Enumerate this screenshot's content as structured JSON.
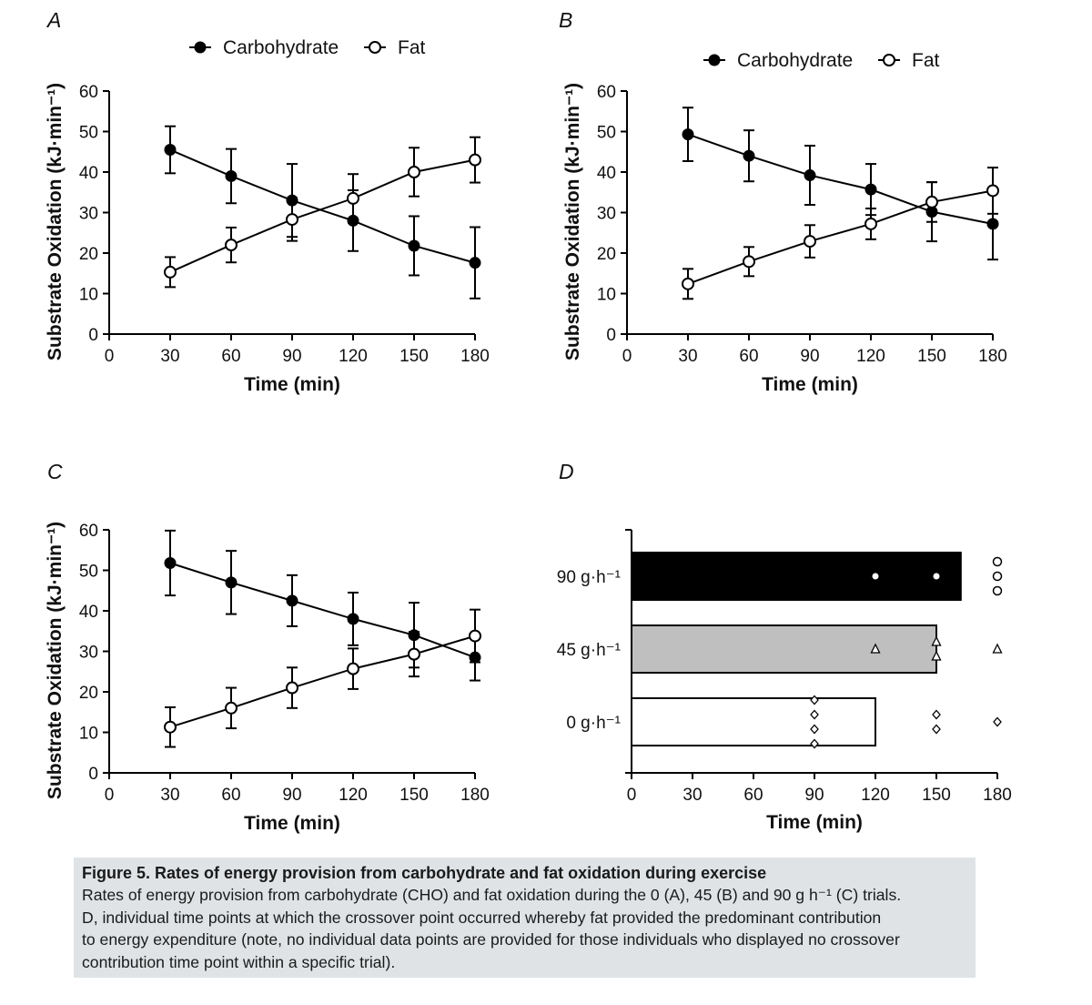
{
  "legend": {
    "carb": "Carbohydrate",
    "fat": "Fat"
  },
  "caption": {
    "title": "Figure 5.  Rates of energy provision from carbohydrate and fat oxidation during exercise",
    "line1": "Rates of energy provision from carbohydrate (CHO) and fat oxidation during the 0 (A), 45 (B) and 90 g h⁻¹ (C) trials.",
    "line2": "D, individual time points at which the crossover point occurred whereby fat provided the predominant contribution",
    "line3": "to energy expenditure (note, no individual data points are provided for those individuals who displayed no crossover",
    "line4": "contribution time point within a specific trial)."
  },
  "chart_data": [
    {
      "panel": "A",
      "type": "line",
      "xlabel": "Time (min)",
      "ylabel": "Substrate Oxidation (kJ·min⁻¹)",
      "xlim": [
        0,
        180
      ],
      "ylim": [
        0,
        60
      ],
      "xticks": [
        "0",
        "30",
        "60",
        "90",
        "120",
        "150",
        "180"
      ],
      "yticks": [
        "0",
        "10",
        "20",
        "30",
        "40",
        "50",
        "60"
      ],
      "x": [
        30,
        60,
        90,
        120,
        150,
        180
      ],
      "series": [
        {
          "name": "Carbohydrate",
          "marker": "filled",
          "values": [
            45.5,
            39.0,
            33.0,
            28.0,
            21.8,
            17.6
          ],
          "err": [
            5.8,
            6.7,
            9.0,
            7.5,
            7.3,
            8.8
          ]
        },
        {
          "name": "Fat",
          "marker": "open",
          "values": [
            15.3,
            22.0,
            28.3,
            33.5,
            40.0,
            43.0
          ],
          "err": [
            3.7,
            4.3,
            5.3,
            6.0,
            6.0,
            5.6
          ]
        }
      ]
    },
    {
      "panel": "B",
      "type": "line",
      "xlabel": "Time (min)",
      "ylabel": "Substrate Oxidation (kJ·min⁻¹)",
      "xlim": [
        0,
        180
      ],
      "ylim": [
        0,
        60
      ],
      "xticks": [
        "0",
        "30",
        "60",
        "90",
        "120",
        "150",
        "180"
      ],
      "yticks": [
        "0",
        "10",
        "20",
        "30",
        "40",
        "50",
        "60"
      ],
      "x": [
        30,
        60,
        90,
        120,
        150,
        180
      ],
      "series": [
        {
          "name": "Carbohydrate",
          "marker": "filled",
          "values": [
            49.3,
            44.0,
            39.2,
            35.7,
            30.2,
            27.2
          ],
          "err": [
            6.6,
            6.3,
            7.3,
            6.3,
            7.3,
            8.8
          ]
        },
        {
          "name": "Fat",
          "marker": "open",
          "values": [
            12.4,
            17.9,
            22.9,
            27.2,
            32.6,
            35.4
          ],
          "err": [
            3.7,
            3.6,
            4.0,
            3.8,
            4.9,
            5.7
          ]
        }
      ]
    },
    {
      "panel": "C",
      "type": "line",
      "xlabel": "Time (min)",
      "ylabel": "Substrate Oxidation (kJ·min⁻¹)",
      "xlim": [
        0,
        180
      ],
      "ylim": [
        0,
        60
      ],
      "xticks": [
        "0",
        "30",
        "60",
        "90",
        "120",
        "150",
        "180"
      ],
      "yticks": [
        "0",
        "10",
        "20",
        "30",
        "40",
        "50",
        "60"
      ],
      "x": [
        30,
        60,
        90,
        120,
        150,
        180
      ],
      "series": [
        {
          "name": "Carbohydrate",
          "marker": "filled",
          "values": [
            51.8,
            47.0,
            42.5,
            38.0,
            34.0,
            28.5
          ],
          "err": [
            8.0,
            7.8,
            6.3,
            6.5,
            8.0,
            5.7
          ]
        },
        {
          "name": "Fat",
          "marker": "open",
          "values": [
            11.3,
            16.0,
            21.0,
            25.7,
            29.3,
            33.8
          ],
          "err": [
            4.9,
            5.0,
            5.0,
            5.0,
            5.5,
            6.5
          ]
        }
      ]
    },
    {
      "panel": "D",
      "type": "bar",
      "orientation": "horizontal",
      "xlabel": "Time (min)",
      "xlim": [
        0,
        180
      ],
      "xticks": [
        "0",
        "30",
        "60",
        "90",
        "120",
        "150",
        "180"
      ],
      "categories": [
        "90 g·h⁻¹",
        "45 g·h⁻¹",
        "0 g·h⁻¹"
      ],
      "values": [
        162,
        150,
        120
      ],
      "fill": [
        "#000000",
        "#bfbfbf",
        "#ffffff"
      ],
      "individual_points": [
        {
          "category": "90 g·h⁻¹",
          "marker": "circle",
          "x": [
            120,
            150,
            180,
            180,
            180
          ]
        },
        {
          "category": "45 g·h⁻¹",
          "marker": "triangle",
          "x": [
            120,
            150,
            150,
            180
          ]
        },
        {
          "category": "0 g·h⁻¹",
          "marker": "diamond",
          "x": [
            90,
            90,
            90,
            90,
            150,
            150,
            180
          ]
        }
      ]
    }
  ]
}
